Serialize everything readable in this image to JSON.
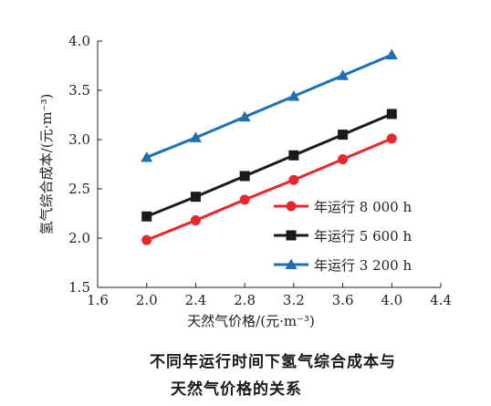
{
  "chart_data": {
    "type": "line",
    "x": [
      2.0,
      2.4,
      2.8,
      3.2,
      3.6,
      4.0
    ],
    "xlabel": "天然气价格/(元·m⁻³)",
    "ylabel": "氢气综合成本/(元·m⁻³)",
    "xlim": [
      1.6,
      4.4
    ],
    "ylim": [
      1.5,
      4.0
    ],
    "xticks": [
      "1.6",
      "2.0",
      "2.4",
      "2.8",
      "3.2",
      "3.6",
      "4.0",
      "4.4"
    ],
    "yticks": [
      "1.5",
      "2.0",
      "2.5",
      "3.0",
      "3.5",
      "4.0"
    ],
    "grid": false,
    "legend_position": "lower-right",
    "series": [
      {
        "name": "年运行 8 000 h",
        "values": [
          1.98,
          2.18,
          2.39,
          2.59,
          2.8,
          3.01
        ],
        "color": "#e8262b",
        "marker": "circle"
      },
      {
        "name": "年运行 5 600 h",
        "values": [
          2.22,
          2.42,
          2.63,
          2.84,
          3.05,
          3.26
        ],
        "color": "#1a1a1a",
        "marker": "square"
      },
      {
        "name": "年运行 3 200 h",
        "values": [
          2.82,
          3.02,
          3.23,
          3.44,
          3.65,
          3.86
        ],
        "color": "#1f6fb2",
        "marker": "triangle"
      }
    ]
  },
  "caption": {
    "line1": "不同年运行时间下氢气综合成本与",
    "line2": "天然气价格的关系"
  }
}
